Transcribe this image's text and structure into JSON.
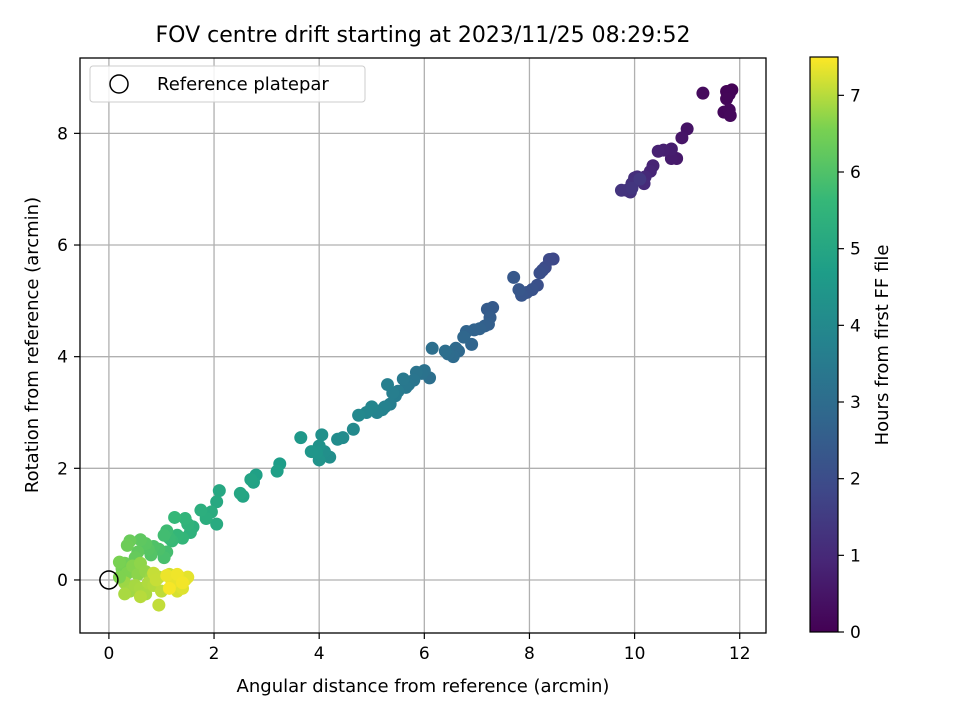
{
  "chart_data": {
    "type": "scatter",
    "title": "FOV centre drift starting at 2023/11/25 08:29:52",
    "xlabel": "Angular distance from reference (arcmin)",
    "ylabel": "Rotation from reference (arcmin)",
    "xlim": [
      -0.55,
      12.5
    ],
    "ylim": [
      -0.95,
      9.35
    ],
    "xticks": [
      0,
      2,
      4,
      6,
      8,
      10,
      12
    ],
    "yticks": [
      0,
      2,
      4,
      6,
      8
    ],
    "xtick_labels": [
      "0",
      "2",
      "4",
      "6",
      "8",
      "10",
      "12"
    ],
    "ytick_labels": [
      "0",
      "2",
      "4",
      "6",
      "8"
    ],
    "grid": true,
    "legend": {
      "placement": "top-left",
      "entries": [
        {
          "label": "Reference platepar",
          "marker": "open-circle"
        }
      ]
    },
    "reference_point": {
      "x": 0,
      "y": 0
    },
    "colorbar": {
      "label": "Hours from first FF file",
      "colormap": "viridis",
      "range": [
        0,
        7.5
      ],
      "ticks": [
        0,
        1,
        2,
        3,
        4,
        5,
        6,
        7
      ],
      "tick_labels": [
        "0",
        "1",
        "2",
        "3",
        "4",
        "5",
        "6",
        "7"
      ]
    },
    "series": [
      {
        "points": [
          [
            11.85,
            8.78,
            0.05
          ],
          [
            11.75,
            8.75,
            0.08
          ],
          [
            11.8,
            8.7,
            0.1
          ],
          [
            11.75,
            8.62,
            0.12
          ],
          [
            11.7,
            8.38,
            0.15
          ],
          [
            11.8,
            8.42,
            0.18
          ],
          [
            11.82,
            8.32,
            0.2
          ],
          [
            11.3,
            8.72,
            0.25
          ],
          [
            11.0,
            8.08,
            0.45
          ],
          [
            10.9,
            7.92,
            0.5
          ],
          [
            10.8,
            7.55,
            0.6
          ],
          [
            10.7,
            7.55,
            0.65
          ],
          [
            10.7,
            7.72,
            0.7
          ],
          [
            10.55,
            7.7,
            0.75
          ],
          [
            10.45,
            7.68,
            0.8
          ],
          [
            10.35,
            7.42,
            0.85
          ],
          [
            10.3,
            7.32,
            0.9
          ],
          [
            10.2,
            7.22,
            1.0
          ],
          [
            10.18,
            7.1,
            1.05
          ],
          [
            10.05,
            7.22,
            1.1
          ],
          [
            10.0,
            7.2,
            1.15
          ],
          [
            9.95,
            7.1,
            1.2
          ],
          [
            9.92,
            6.95,
            1.22
          ],
          [
            9.85,
            6.98,
            1.25
          ],
          [
            9.75,
            6.98,
            1.3
          ],
          [
            9.95,
            7.02,
            1.35
          ],
          [
            10.1,
            7.18,
            1.4
          ],
          [
            8.45,
            5.75,
            1.85
          ],
          [
            8.38,
            5.74,
            1.9
          ],
          [
            8.3,
            5.6,
            1.95
          ],
          [
            8.25,
            5.55,
            2.0
          ],
          [
            8.2,
            5.5,
            2.05
          ],
          [
            8.15,
            5.28,
            2.1
          ],
          [
            8.05,
            5.2,
            2.15
          ],
          [
            7.95,
            5.15,
            2.2
          ],
          [
            7.85,
            5.1,
            2.25
          ],
          [
            7.8,
            5.2,
            2.3
          ],
          [
            7.7,
            5.42,
            2.35
          ],
          [
            7.3,
            4.88,
            2.4
          ],
          [
            7.2,
            4.85,
            2.45
          ],
          [
            7.25,
            4.7,
            2.5
          ],
          [
            7.22,
            4.58,
            2.55
          ],
          [
            7.15,
            4.55,
            2.6
          ],
          [
            7.05,
            4.5,
            2.65
          ],
          [
            6.95,
            4.48,
            2.7
          ],
          [
            6.8,
            4.45,
            2.72
          ],
          [
            6.9,
            4.22,
            2.75
          ],
          [
            6.75,
            4.35,
            2.8
          ],
          [
            6.65,
            4.1,
            2.85
          ],
          [
            6.6,
            4.15,
            2.9
          ],
          [
            6.55,
            4.0,
            2.95
          ],
          [
            6.45,
            4.05,
            3.0
          ],
          [
            6.4,
            4.1,
            3.05
          ],
          [
            6.15,
            4.15,
            3.08
          ],
          [
            6.1,
            3.62,
            3.1
          ],
          [
            6.0,
            3.75,
            3.15
          ],
          [
            5.95,
            3.7,
            3.2
          ],
          [
            5.85,
            3.72,
            3.25
          ],
          [
            5.8,
            3.58,
            3.3
          ],
          [
            5.7,
            3.5,
            3.35
          ],
          [
            5.65,
            3.45,
            3.4
          ],
          [
            5.6,
            3.6,
            3.45
          ],
          [
            5.5,
            3.38,
            3.5
          ],
          [
            5.45,
            3.3,
            3.55
          ],
          [
            5.4,
            3.35,
            3.6
          ],
          [
            5.35,
            3.15,
            3.62
          ],
          [
            5.3,
            3.5,
            3.65
          ],
          [
            5.25,
            3.1,
            3.7
          ],
          [
            5.2,
            3.05,
            3.75
          ],
          [
            5.1,
            3.0,
            3.8
          ],
          [
            5.0,
            3.1,
            3.85
          ],
          [
            4.9,
            3.0,
            3.9
          ],
          [
            4.75,
            2.95,
            3.95
          ],
          [
            4.65,
            2.7,
            4.0
          ],
          [
            4.45,
            2.55,
            4.05
          ],
          [
            4.35,
            2.52,
            4.1
          ],
          [
            4.2,
            2.2,
            4.15
          ],
          [
            4.1,
            2.3,
            4.2
          ],
          [
            4.05,
            2.6,
            4.25
          ],
          [
            4.0,
            2.4,
            4.3
          ],
          [
            4.0,
            2.15,
            4.35
          ],
          [
            3.95,
            2.28,
            4.4
          ],
          [
            3.85,
            2.3,
            4.45
          ],
          [
            3.65,
            2.55,
            4.5
          ],
          [
            3.25,
            2.08,
            4.7
          ],
          [
            3.2,
            1.95,
            4.75
          ],
          [
            2.8,
            1.88,
            4.8
          ],
          [
            2.75,
            1.75,
            4.85
          ],
          [
            2.7,
            1.8,
            4.9
          ],
          [
            2.55,
            1.5,
            4.95
          ],
          [
            2.5,
            1.55,
            5.0
          ],
          [
            2.1,
            1.6,
            5.05
          ],
          [
            2.05,
            1.4,
            5.1
          ],
          [
            2.05,
            1.0,
            5.15
          ],
          [
            1.95,
            1.22,
            5.2
          ],
          [
            1.85,
            1.1,
            5.25
          ],
          [
            1.75,
            1.25,
            5.3
          ],
          [
            1.6,
            0.95,
            5.35
          ],
          [
            1.55,
            0.85,
            5.4
          ],
          [
            1.5,
            1.0,
            5.45
          ],
          [
            1.45,
            1.1,
            5.5
          ],
          [
            1.4,
            0.75,
            5.55
          ],
          [
            1.3,
            0.8,
            5.6
          ],
          [
            1.25,
            1.12,
            5.62
          ],
          [
            1.2,
            0.7,
            5.65
          ],
          [
            1.15,
            0.75,
            5.7
          ],
          [
            1.1,
            0.88,
            5.75
          ],
          [
            1.05,
            0.8,
            5.8
          ],
          [
            1.1,
            0.5,
            5.85
          ],
          [
            1.05,
            0.4,
            5.9
          ],
          [
            0.95,
            0.55,
            5.95
          ],
          [
            0.85,
            0.6,
            6.0
          ],
          [
            0.8,
            0.45,
            6.05
          ],
          [
            0.75,
            0.55,
            6.1
          ],
          [
            0.7,
            0.65,
            6.15
          ],
          [
            0.6,
            0.72,
            6.2
          ],
          [
            0.55,
            0.5,
            6.25
          ],
          [
            0.5,
            0.4,
            6.3
          ],
          [
            0.4,
            0.7,
            6.35
          ],
          [
            0.35,
            0.62,
            6.4
          ],
          [
            0.3,
            0.3,
            6.45
          ],
          [
            0.25,
            0.2,
            6.5
          ],
          [
            0.2,
            0.32,
            6.55
          ],
          [
            0.35,
            0.12,
            6.6
          ],
          [
            0.45,
            0.25,
            6.65
          ],
          [
            0.55,
            0.1,
            6.7
          ],
          [
            0.6,
            0.3,
            6.72
          ],
          [
            0.7,
            0.15,
            6.75
          ],
          [
            0.8,
            0.05,
            6.8
          ],
          [
            0.3,
            -0.05,
            6.82
          ],
          [
            0.4,
            -0.2,
            6.85
          ],
          [
            0.5,
            -0.1,
            6.88
          ],
          [
            0.6,
            -0.15,
            6.9
          ],
          [
            0.7,
            -0.25,
            6.92
          ],
          [
            0.75,
            -0.05,
            6.95
          ],
          [
            0.85,
            -0.1,
            6.98
          ],
          [
            0.95,
            0.05,
            7.0
          ],
          [
            1.0,
            -0.2,
            7.05
          ],
          [
            0.95,
            -0.45,
            7.08
          ],
          [
            0.85,
            0.12,
            7.1
          ],
          [
            0.9,
            0.0,
            7.12
          ],
          [
            1.15,
            0.1,
            7.15
          ],
          [
            1.2,
            0.0,
            7.18
          ],
          [
            1.25,
            -0.1,
            7.2
          ],
          [
            1.3,
            -0.2,
            7.22
          ],
          [
            1.35,
            0.05,
            7.25
          ],
          [
            1.4,
            -0.15,
            7.28
          ],
          [
            1.45,
            0.0,
            7.3
          ],
          [
            1.5,
            0.05,
            7.32
          ],
          [
            1.2,
            -0.05,
            7.35
          ],
          [
            1.1,
            0.08,
            7.38
          ],
          [
            1.3,
            0.1,
            7.4
          ],
          [
            1.4,
            -0.05,
            7.42
          ],
          [
            1.15,
            -0.15,
            7.45
          ],
          [
            0.2,
            0.05,
            6.6
          ],
          [
            0.3,
            -0.25,
            6.9
          ],
          [
            0.6,
            -0.3,
            7.0
          ]
        ]
      }
    ]
  }
}
